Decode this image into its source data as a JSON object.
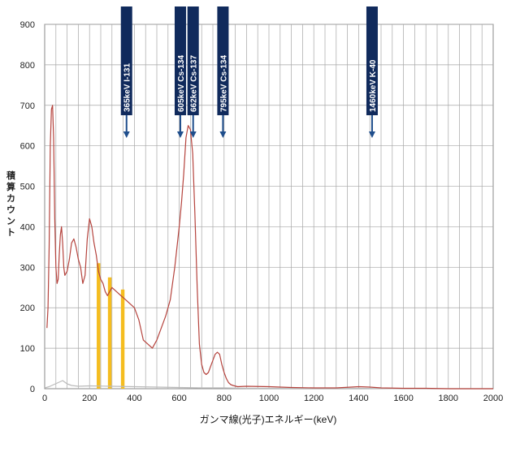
{
  "chart_data": {
    "type": "line",
    "title": "",
    "xlabel": "ガンマ線(光子)エネルギー(keV)",
    "ylabel": "積算カウント",
    "xlim": [
      0,
      2000
    ],
    "ylim": [
      0,
      900
    ],
    "x_ticks": [
      0,
      200,
      400,
      600,
      800,
      1000,
      1200,
      1400,
      1600,
      1800,
      2000
    ],
    "y_ticks": [
      0,
      100,
      200,
      300,
      400,
      500,
      600,
      700,
      800,
      900
    ],
    "grid": true,
    "series": [
      {
        "color": "#b5433d",
        "x": [
          10,
          15,
          20,
          25,
          30,
          35,
          40,
          45,
          50,
          55,
          60,
          65,
          70,
          75,
          80,
          85,
          90,
          100,
          110,
          120,
          130,
          140,
          150,
          160,
          170,
          180,
          190,
          200,
          210,
          220,
          230,
          240,
          250,
          260,
          270,
          280,
          290,
          300,
          320,
          340,
          360,
          380,
          400,
          420,
          440,
          460,
          480,
          500,
          520,
          540,
          560,
          580,
          600,
          610,
          620,
          630,
          640,
          650,
          660,
          670,
          680,
          690,
          700,
          710,
          720,
          730,
          740,
          750,
          760,
          770,
          780,
          790,
          800,
          810,
          820,
          830,
          840,
          860,
          900,
          1000,
          1100,
          1200,
          1300,
          1400,
          1450,
          1500,
          1600,
          1700,
          1800,
          1900,
          2000
        ],
        "y": [
          150,
          200,
          350,
          600,
          690,
          700,
          620,
          420,
          300,
          260,
          270,
          330,
          380,
          400,
          360,
          300,
          280,
          290,
          320,
          360,
          370,
          350,
          320,
          300,
          260,
          280,
          370,
          420,
          400,
          360,
          330,
          290,
          270,
          260,
          240,
          230,
          240,
          250,
          240,
          230,
          220,
          210,
          200,
          170,
          120,
          110,
          100,
          120,
          150,
          180,
          220,
          300,
          400,
          460,
          530,
          620,
          650,
          640,
          580,
          430,
          250,
          110,
          60,
          40,
          35,
          40,
          55,
          70,
          85,
          90,
          85,
          60,
          40,
          25,
          15,
          10,
          8,
          5,
          6,
          5,
          3,
          2,
          2,
          5,
          4,
          2,
          1,
          1,
          0,
          0,
          0
        ]
      },
      {
        "color": "#bbbbbb",
        "x": [
          0,
          20,
          40,
          60,
          80,
          100,
          120,
          150,
          200,
          300,
          400,
          500,
          600,
          700,
          800,
          900,
          1000,
          1200,
          1400,
          1600,
          1800,
          2000
        ],
        "y": [
          2,
          5,
          10,
          15,
          20,
          12,
          8,
          6,
          7,
          6,
          5,
          4,
          3,
          2,
          2,
          1,
          1,
          1,
          1,
          0,
          0,
          0
        ]
      }
    ],
    "highlight_bars": {
      "color": "#f5bd1f",
      "ranges": [
        [
          232,
          248
        ],
        [
          282,
          298
        ],
        [
          340,
          356
        ]
      ],
      "tops": [
        310,
        275,
        245
      ]
    },
    "annotations": [
      {
        "x": 365,
        "label": "365keV  I-131"
      },
      {
        "x": 605,
        "label": "605keV  Cs-134"
      },
      {
        "x": 662,
        "label": "662keV  Cs-137"
      },
      {
        "x": 795,
        "label": "795keV  Cs-134"
      },
      {
        "x": 1460,
        "label": "1460keV  K-40"
      }
    ],
    "colors": {
      "grid": "#a6a6a6",
      "annotation_fill": "#102a5c",
      "annotation_arrow": "#1f4e8c"
    }
  }
}
